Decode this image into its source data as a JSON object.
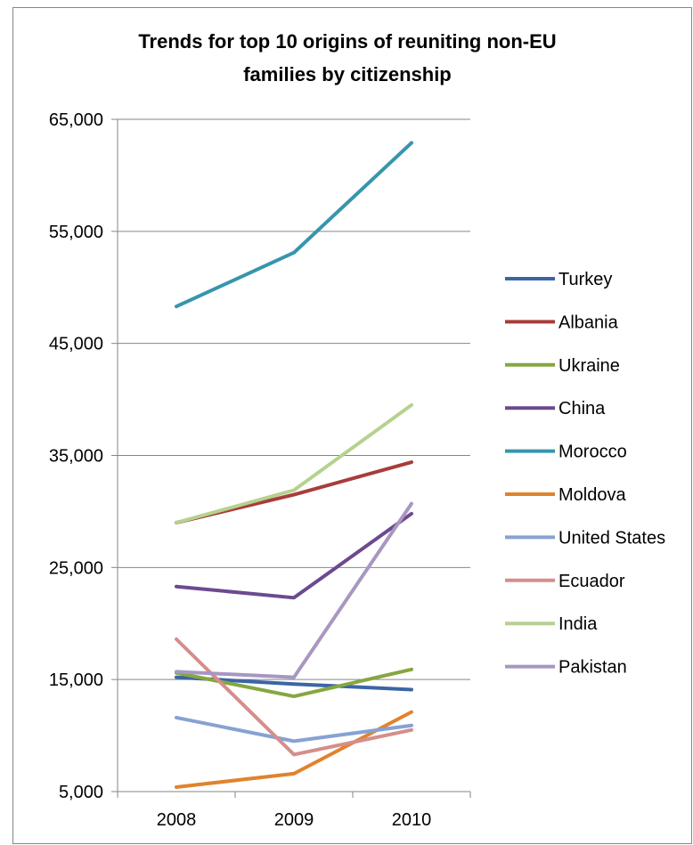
{
  "chart_data": {
    "type": "line",
    "title": "Trends for top 10 origins of reuniting non-EU\nfamilies by citizenship",
    "xlabel": "",
    "ylabel": "",
    "categories": [
      "2008",
      "2009",
      "2010"
    ],
    "ylim": [
      5000,
      65000
    ],
    "yticks": [
      "5,000",
      "15,000",
      "25,000",
      "35,000",
      "45,000",
      "55,000",
      "65,000"
    ],
    "grid": true,
    "legend_position": "right",
    "series": [
      {
        "name": "Turkey",
        "color": "#3A66A6",
        "values": [
          15200,
          14600,
          14100
        ]
      },
      {
        "name": "Albania",
        "color": "#A93C3A",
        "values": [
          29000,
          31500,
          34400
        ]
      },
      {
        "name": "Ukraine",
        "color": "#86A63F",
        "values": [
          15600,
          13500,
          15900
        ]
      },
      {
        "name": "China",
        "color": "#6C4A8F",
        "values": [
          23300,
          22300,
          29800
        ]
      },
      {
        "name": "Morocco",
        "color": "#3795AE",
        "values": [
          48300,
          53100,
          62900
        ]
      },
      {
        "name": "Moldova",
        "color": "#E0832E",
        "values": [
          5400,
          6600,
          12100
        ]
      },
      {
        "name": "United States",
        "color": "#87A2D2",
        "values": [
          11600,
          9500,
          10900
        ]
      },
      {
        "name": "Ecuador",
        "color": "#D58E8B",
        "values": [
          18600,
          8300,
          10500
        ]
      },
      {
        "name": "India",
        "color": "#B5D28E",
        "values": [
          29000,
          31900,
          39500
        ]
      },
      {
        "name": "Pakistan",
        "color": "#A797C2",
        "values": [
          15700,
          15200,
          30700
        ]
      }
    ]
  }
}
